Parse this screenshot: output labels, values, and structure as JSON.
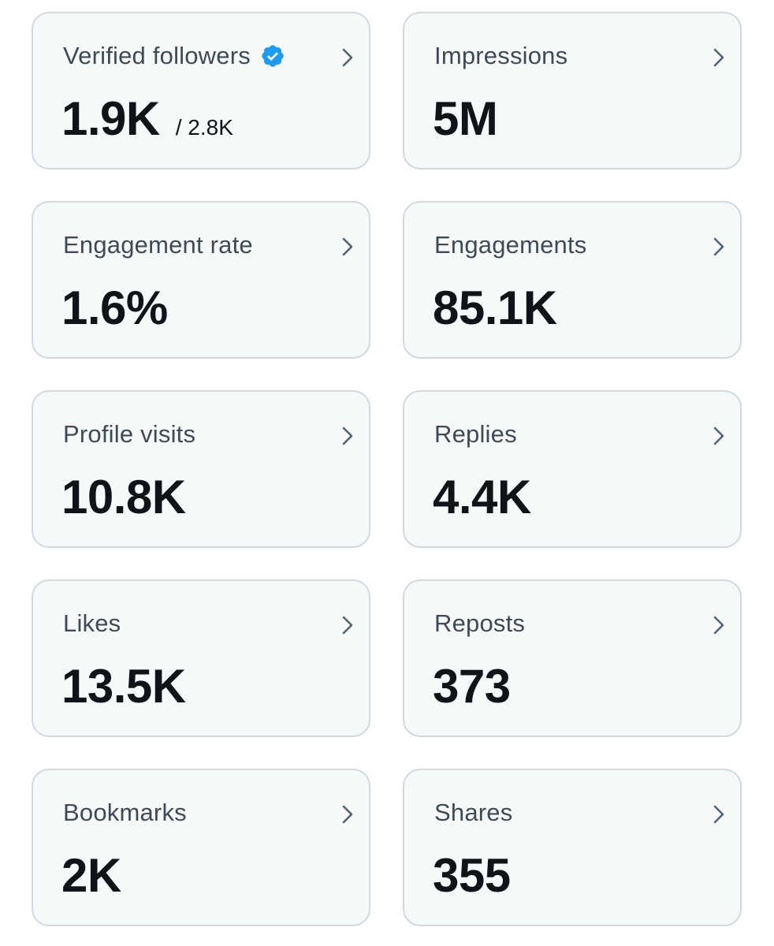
{
  "metrics": {
    "verified_followers": {
      "label": "Verified followers",
      "value": "1.9K",
      "sub": "/ 2.8K"
    },
    "impressions": {
      "label": "Impressions",
      "value": "5M"
    },
    "engagement_rate": {
      "label": "Engagement rate",
      "value": "1.6%"
    },
    "engagements": {
      "label": "Engagements",
      "value": "85.1K"
    },
    "profile_visits": {
      "label": "Profile visits",
      "value": "10.8K"
    },
    "replies": {
      "label": "Replies",
      "value": "4.4K"
    },
    "likes": {
      "label": "Likes",
      "value": "13.5K"
    },
    "reposts": {
      "label": "Reposts",
      "value": "373"
    },
    "bookmarks": {
      "label": "Bookmarks",
      "value": "2K"
    },
    "shares": {
      "label": "Shares",
      "value": "355"
    }
  },
  "icons": {
    "verified": "verified-badge-icon",
    "chevron": "chevron-right-icon"
  },
  "colors": {
    "card_bg": "#f7f9f9",
    "card_border": "#cfd9de",
    "label": "#3e4b57",
    "value": "#0f1419",
    "verified_blue": "#1d9bf0",
    "chevron": "#536471"
  }
}
